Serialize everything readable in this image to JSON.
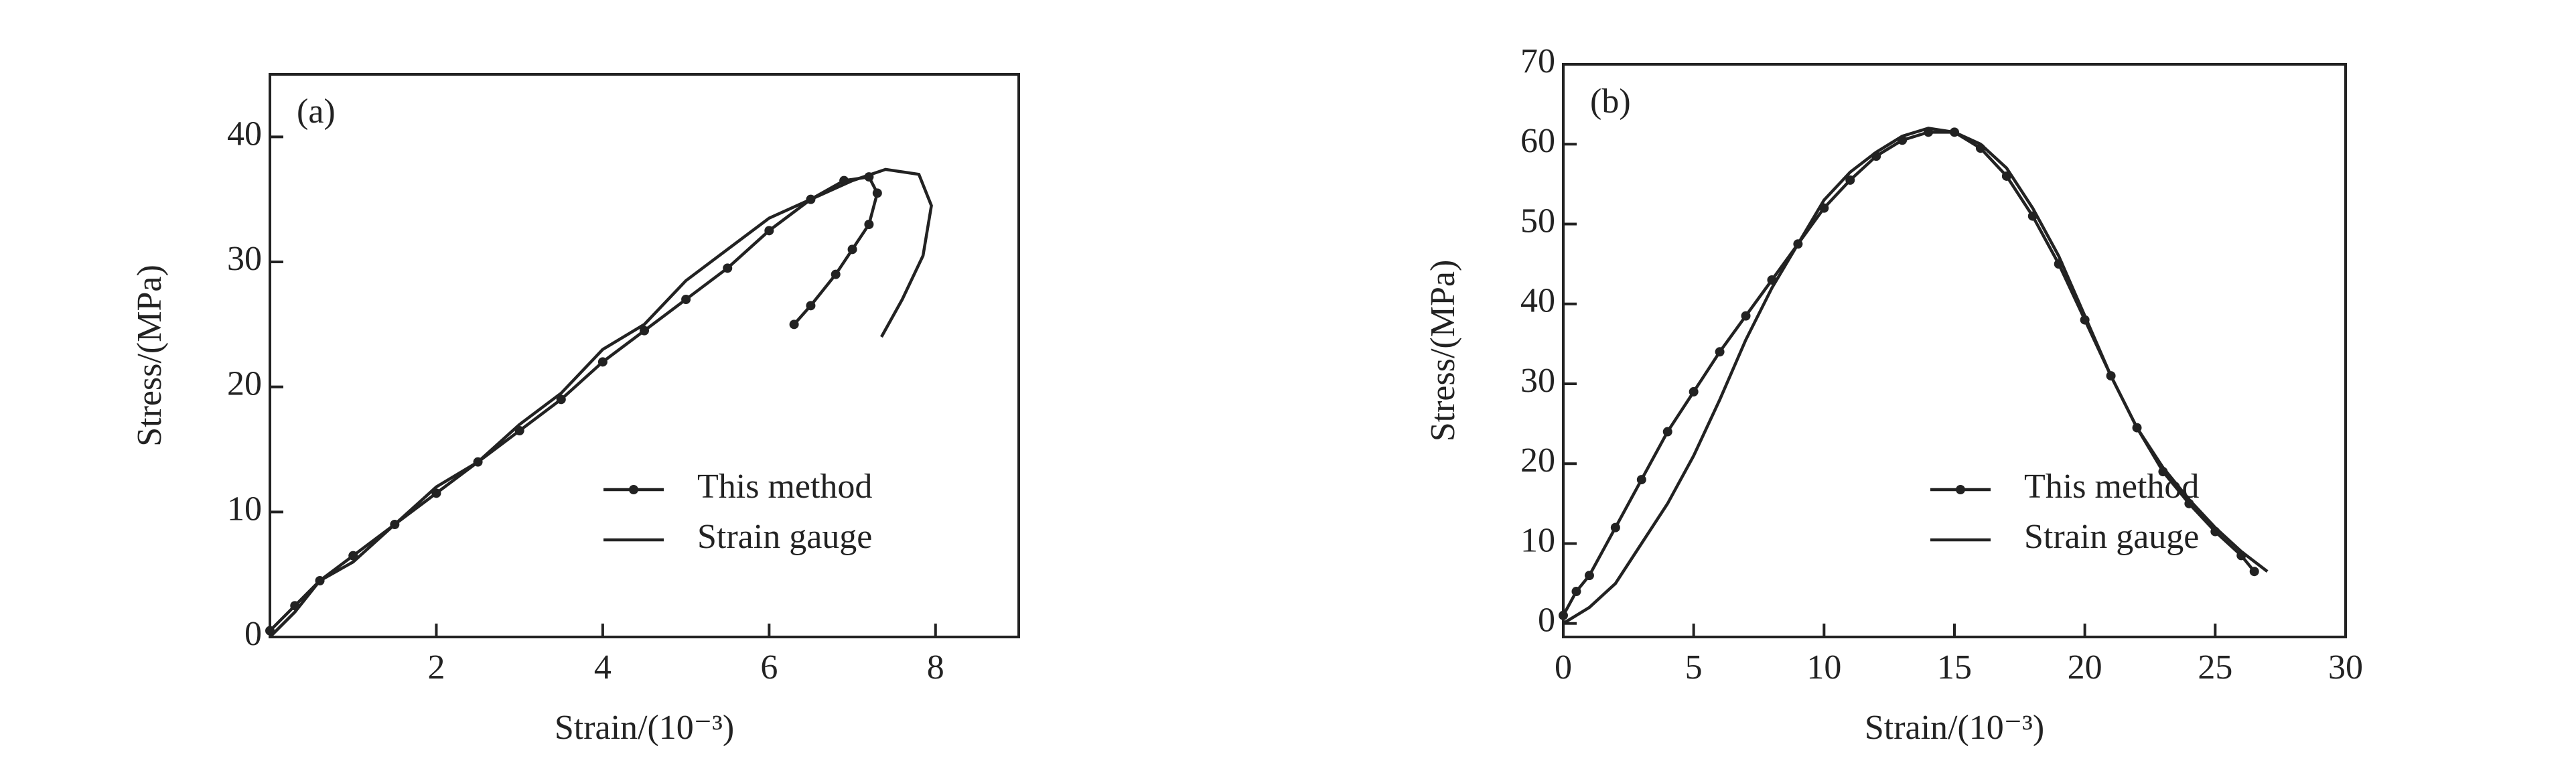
{
  "chart_data": [
    {
      "type": "line",
      "annotation": "(a)",
      "x_label": "Strain/(10⁻³)",
      "y_label": "Stress/(MPa)",
      "xlim": [
        0,
        9
      ],
      "xticks": [
        2,
        4,
        6,
        8
      ],
      "ylim": [
        0,
        45
      ],
      "yticks": [
        0,
        10,
        20,
        30,
        40
      ],
      "legend": "lower right",
      "series": [
        {
          "name": "This method",
          "color": "#222",
          "markers": true,
          "x": [
            0,
            0.3,
            0.6,
            1.0,
            1.5,
            2.0,
            2.5,
            3.0,
            3.5,
            4.0,
            4.5,
            5.0,
            5.5,
            6.0,
            6.5,
            6.9,
            7.2,
            7.3,
            7.2,
            7.0,
            6.8,
            6.5,
            6.3
          ],
          "values": [
            0.5,
            2.5,
            4.5,
            6.5,
            9,
            11.5,
            14,
            16.5,
            19,
            22,
            24.5,
            27,
            29.5,
            32.5,
            35,
            36.5,
            36.8,
            35.5,
            33,
            31,
            29,
            26.5,
            25
          ]
        },
        {
          "name": "Strain gauge",
          "color": "#222",
          "markers": false,
          "x": [
            0,
            0.3,
            0.6,
            1.0,
            1.5,
            2.0,
            2.5,
            3.0,
            3.5,
            4.0,
            4.5,
            5.0,
            5.5,
            6.0,
            6.5,
            7.0,
            7.4,
            7.8,
            7.95,
            7.85,
            7.6,
            7.35
          ],
          "values": [
            0,
            2,
            4.5,
            6,
            9,
            12,
            14,
            17,
            19.5,
            23,
            25,
            28.5,
            31,
            33.5,
            35,
            36.5,
            37.4,
            37,
            34.5,
            30.5,
            27,
            24
          ]
        }
      ]
    },
    {
      "type": "line",
      "annotation": "(b)",
      "x_label": "Strain/(10⁻³)",
      "y_label": "Stress/(MPa)",
      "xlim": [
        0,
        30
      ],
      "xticks": [
        0,
        5,
        10,
        15,
        20,
        25,
        30
      ],
      "ylim": [
        -1.7,
        70
      ],
      "yticks": [
        0,
        10,
        20,
        30,
        40,
        50,
        60,
        70
      ],
      "legend": "lower right",
      "series": [
        {
          "name": "This method",
          "color": "#222",
          "markers": true,
          "x": [
            0,
            0.5,
            1,
            2,
            3,
            4,
            5,
            6,
            7,
            8,
            9,
            10,
            11,
            12,
            13,
            14,
            15,
            16,
            17,
            18,
            19,
            20,
            21,
            22,
            23,
            24,
            25,
            26,
            26.5
          ],
          "values": [
            1,
            4,
            6,
            12,
            18,
            24,
            29,
            34,
            38.5,
            43,
            47.5,
            52,
            55.5,
            58.5,
            60.5,
            61.5,
            61.5,
            59.5,
            56,
            51,
            45,
            38,
            31,
            24.5,
            19,
            15,
            11.5,
            8.5,
            6.5
          ]
        },
        {
          "name": "Strain gauge",
          "color": "#222",
          "markers": false,
          "x": [
            0,
            1,
            2,
            3,
            4,
            5,
            6,
            7,
            8,
            9,
            10,
            11,
            12,
            13,
            14,
            15,
            16,
            17,
            18,
            19,
            20,
            21,
            22,
            23,
            24,
            25,
            26,
            27
          ],
          "values": [
            0,
            2,
            5,
            10,
            15,
            21,
            28,
            35.5,
            42,
            47.5,
            53,
            56.5,
            59,
            61,
            62,
            61.5,
            60,
            57,
            52,
            46,
            38.5,
            31,
            24.5,
            19.5,
            15.5,
            12,
            9,
            6.5
          ]
        }
      ]
    }
  ]
}
